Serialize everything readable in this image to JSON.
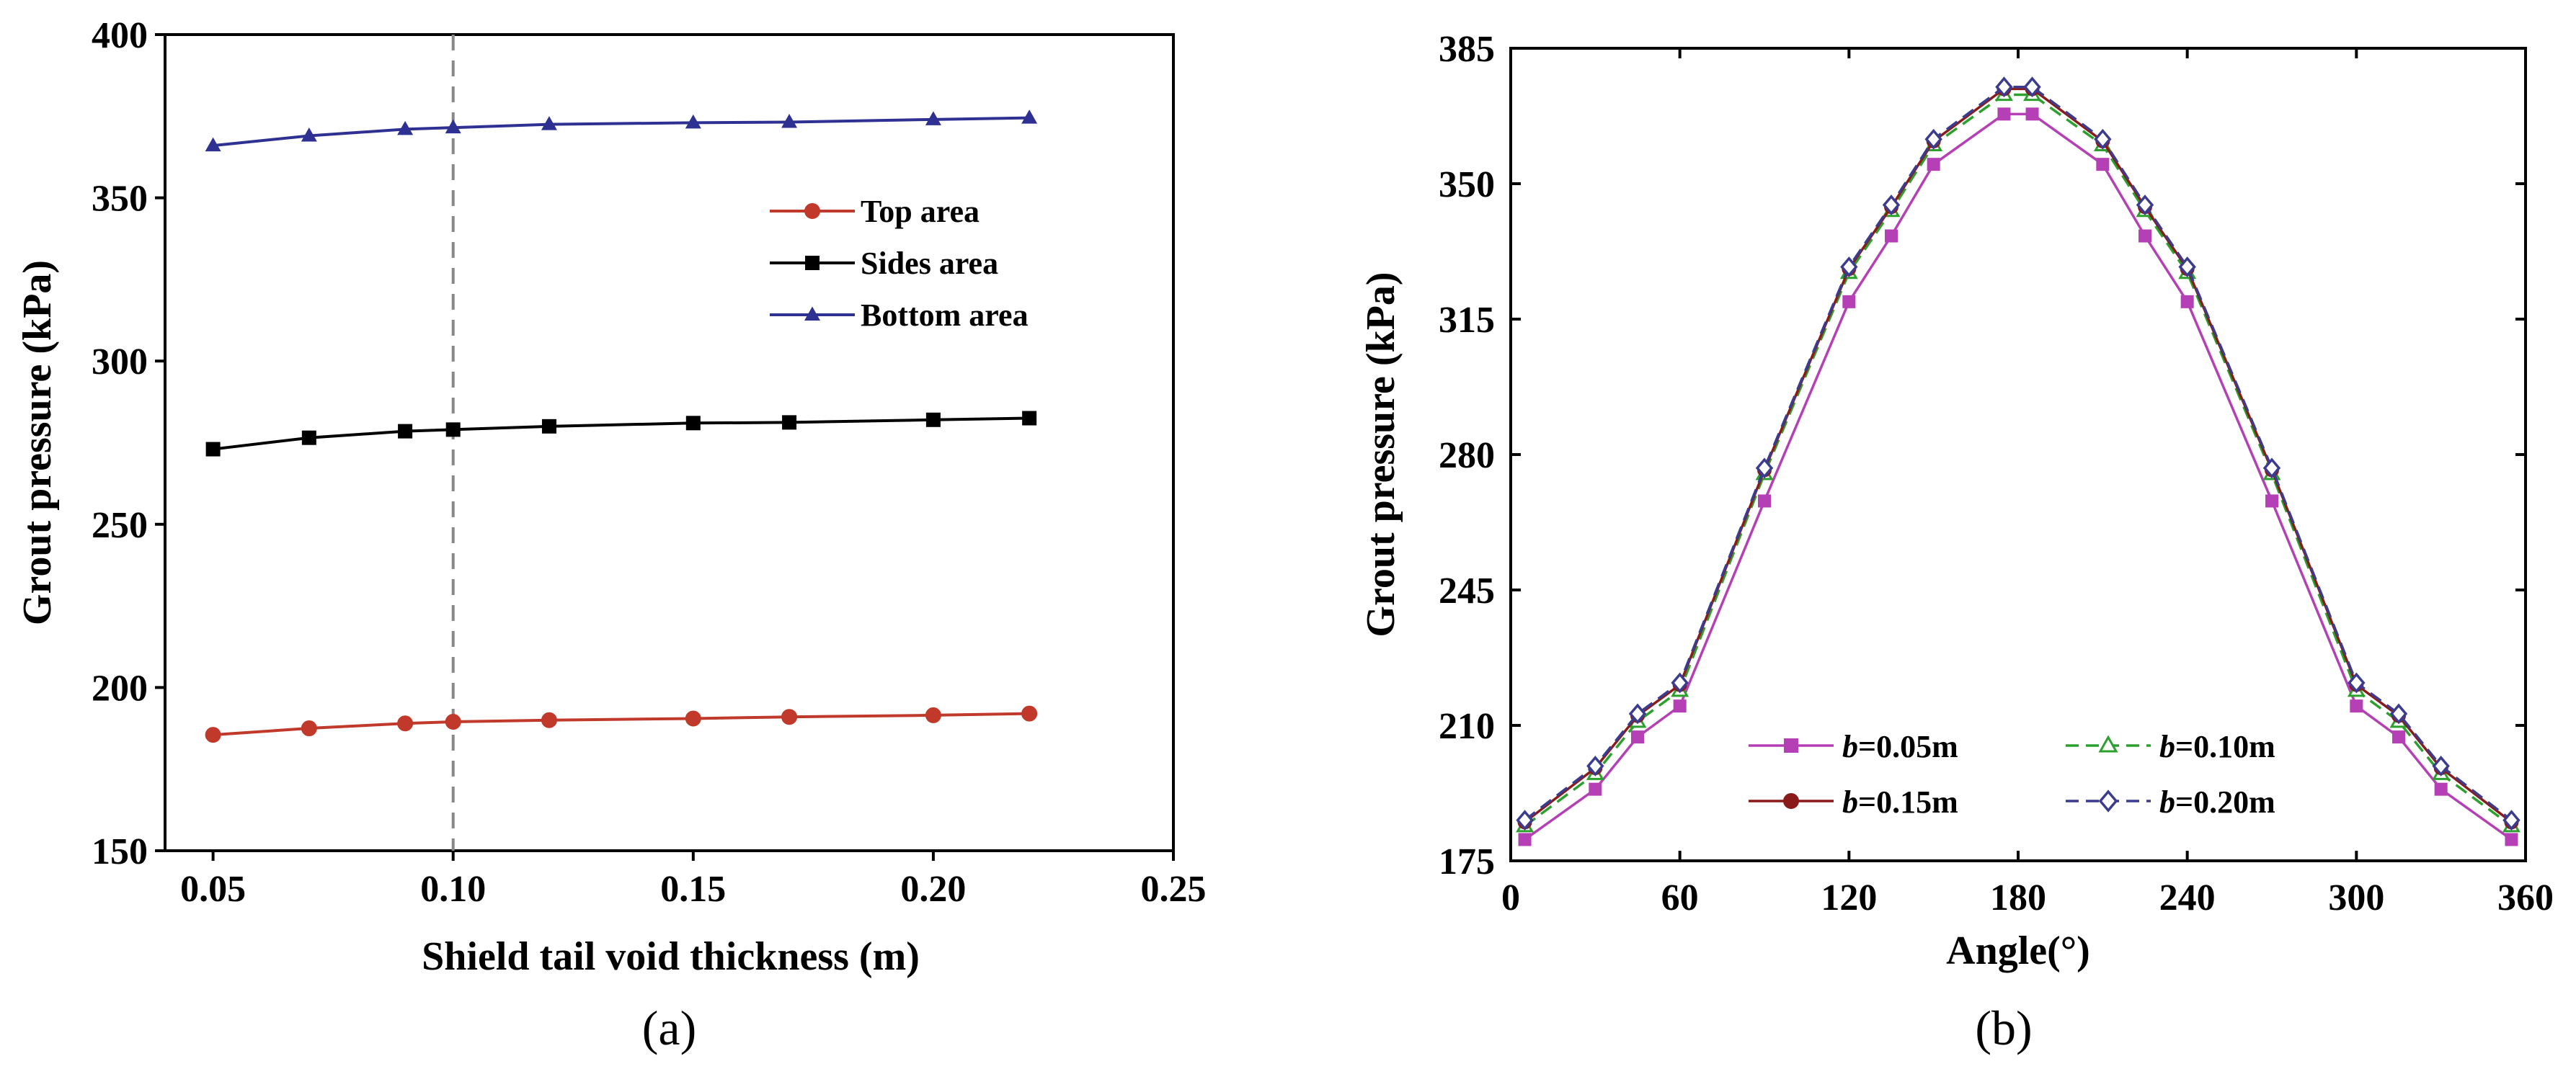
{
  "chart_data": [
    {
      "type": "line",
      "panel": "a",
      "caption": "(a)",
      "xlabel": "Shield tail void thickness (m)",
      "ylabel": "Grout pressure (kPa)",
      "xlim": [
        0.04,
        0.25
      ],
      "ylim": [
        150,
        400
      ],
      "xticks": [
        0.05,
        0.1,
        0.15,
        0.2,
        0.25
      ],
      "xtick_labels": [
        "0.05",
        "0.10",
        "0.15",
        "0.20",
        "0.25"
      ],
      "yticks": [
        150,
        200,
        250,
        300,
        350,
        400
      ],
      "ytick_labels": [
        "150",
        "200",
        "250",
        "300",
        "350",
        "400"
      ],
      "reference_line_x": 0.1,
      "legend_position": "center-right",
      "x": [
        0.05,
        0.07,
        0.09,
        0.1,
        0.12,
        0.15,
        0.17,
        0.2,
        0.22
      ],
      "series": [
        {
          "name": "Top area",
          "marker": "circle",
          "color": "#c0392b",
          "values": [
            185.5,
            187.5,
            189,
            189.5,
            190,
            190.5,
            191,
            191.5,
            192
          ]
        },
        {
          "name": "Sides area",
          "marker": "square",
          "color": "#000000",
          "values": [
            273,
            276.5,
            278.5,
            279,
            280,
            281,
            281.2,
            282,
            282.5
          ]
        },
        {
          "name": "Bottom area",
          "marker": "triangle",
          "color": "#2e3192",
          "values": [
            366,
            369,
            371,
            371.5,
            372.5,
            373,
            373.2,
            374,
            374.5
          ]
        }
      ]
    },
    {
      "type": "line",
      "panel": "b",
      "caption": "(b)",
      "xlabel": "Angle(°)",
      "ylabel": "Grout pressure (kPa)",
      "xlim": [
        0,
        360
      ],
      "ylim": [
        175,
        385
      ],
      "xticks": [
        0,
        60,
        120,
        180,
        240,
        300,
        360
      ],
      "xtick_labels": [
        "0",
        "60",
        "120",
        "180",
        "240",
        "300",
        "360"
      ],
      "yticks": [
        175,
        210,
        245,
        280,
        315,
        350,
        385
      ],
      "ytick_labels": [
        "175",
        "210",
        "245",
        "280",
        "315",
        "350",
        "385"
      ],
      "legend_position": "bottom-center",
      "x": [
        5,
        30,
        45,
        60,
        90,
        120,
        135,
        150,
        175,
        185,
        210,
        225,
        240,
        270,
        300,
        315,
        330,
        355
      ],
      "series": [
        {
          "name_prefix": "b",
          "name_suffix": "=0.05m",
          "marker": "square",
          "dash": "solid",
          "color": "#b53fb5",
          "values": [
            180.5,
            193.5,
            207,
            215,
            268,
            319.5,
            336.5,
            355,
            368,
            368,
            355,
            336.5,
            319.5,
            268,
            215,
            207,
            193.5,
            180.5
          ]
        },
        {
          "name_prefix": "b",
          "name_suffix": "=0.10m",
          "marker": "triangle-open",
          "dash": "dashed",
          "color": "#2ca02c",
          "values": [
            184,
            197.5,
            211,
            219,
            275,
            327,
            343,
            360,
            373,
            373,
            360,
            343,
            327,
            275,
            219,
            211,
            197.5,
            184
          ]
        },
        {
          "name_prefix": "b",
          "name_suffix": "=0.15m",
          "marker": "circle",
          "dash": "solid",
          "color": "#8b1a1a",
          "values": [
            185,
            199,
            212.5,
            220.5,
            276,
            328,
            344,
            361,
            374.5,
            374.5,
            361,
            344,
            328,
            276,
            220.5,
            212.5,
            199,
            185
          ]
        },
        {
          "name_prefix": "b",
          "name_suffix": "=0.20m",
          "marker": "diamond-open",
          "dash": "dashed",
          "color": "#3b3b8f",
          "values": [
            185.5,
            199.5,
            213,
            221,
            276.5,
            328.5,
            344.5,
            361.5,
            375,
            375,
            361.5,
            344.5,
            328.5,
            276.5,
            221,
            213,
            199.5,
            185.5
          ]
        }
      ]
    }
  ]
}
